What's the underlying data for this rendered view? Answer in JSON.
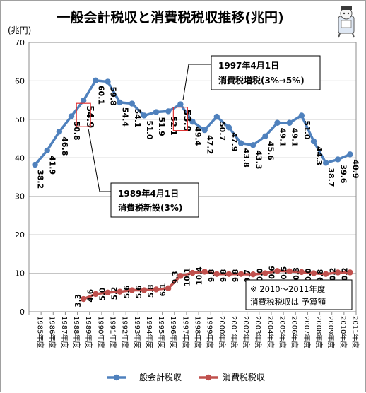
{
  "chart_data": {
    "type": "line",
    "title": "一般会計税収と消費税税収推移(兆円)",
    "y_unit": "(兆円)",
    "ylim": [
      0,
      70
    ],
    "y_ticks": [
      "0",
      "10",
      "20",
      "30",
      "40",
      "50",
      "60",
      "70"
    ],
    "grid": true,
    "legend_position": "bottom",
    "categories": [
      "1985年度",
      "1986年度",
      "1987年度",
      "1988年度",
      "1989年度",
      "1990年度",
      "1991年度",
      "1992年度",
      "1993年度",
      "1994年度",
      "1995年度",
      "1996年度",
      "1997年度",
      "1998年度",
      "1999年度",
      "2000年度",
      "2001年度",
      "2002年度",
      "2003年度",
      "2004年度",
      "2005年度",
      "2006年度",
      "2007年度",
      "2008年度",
      "2009年度",
      "2010年度",
      "2011年度"
    ],
    "series": [
      {
        "name": "一般会計税収",
        "color": "#4f81bd",
        "values": [
          38.2,
          41.9,
          46.8,
          50.8,
          54.9,
          60.1,
          59.8,
          54.4,
          54.1,
          51.0,
          51.9,
          52.1,
          53.9,
          49.4,
          47.2,
          50.7,
          47.9,
          43.8,
          43.3,
          45.6,
          49.1,
          49.1,
          51.0,
          44.3,
          38.7,
          39.6,
          40.9
        ],
        "labels": [
          "38.2",
          "41.9",
          "46.8",
          "50.8",
          "54.9",
          "60.1",
          "59.8",
          "54.4",
          "54.1",
          "51.0",
          "51.9",
          "52.1",
          "53.9",
          "49.4",
          "47.2",
          "50.7",
          "47.9",
          "43.8",
          "43.3",
          "45.6",
          "49.1",
          "49.1",
          "51.0",
          "44.3",
          "38.7",
          "39.6",
          "40.9"
        ]
      },
      {
        "name": "消費税税収",
        "color": "#c0504d",
        "values": [
          null,
          null,
          null,
          null,
          3.3,
          4.6,
          5.0,
          5.2,
          5.6,
          5.6,
          5.8,
          6.1,
          9.3,
          10.1,
          10.4,
          9.8,
          9.8,
          9.8,
          9.7,
          10.0,
          10.6,
          10.5,
          10.3,
          10.0,
          9.8,
          10.2,
          10.2
        ],
        "labels": [
          null,
          null,
          null,
          null,
          "3.3",
          "4.6",
          "5.0",
          "5.2",
          "5.6",
          "5.6",
          "5.8",
          "6.1",
          "9.3",
          "10.1",
          "10.4",
          "9.8",
          "9.8",
          "9.8",
          "9.7",
          "10.0",
          "10.6",
          "10.5",
          "10.3",
          "10.0",
          "9.8",
          "10.2",
          "10.2"
        ]
      }
    ],
    "annotations": [
      {
        "line1": "1997年4月1日",
        "line2": "消費税増税(3%→5%)",
        "target": "1997年度"
      },
      {
        "line1": "1989年4月1日",
        "line2": "消費税新設(3%)",
        "target": "1989年度"
      }
    ],
    "note": {
      "line1": "※ 2010～2011年度",
      "line2": "消費税税収は 予算額"
    }
  }
}
